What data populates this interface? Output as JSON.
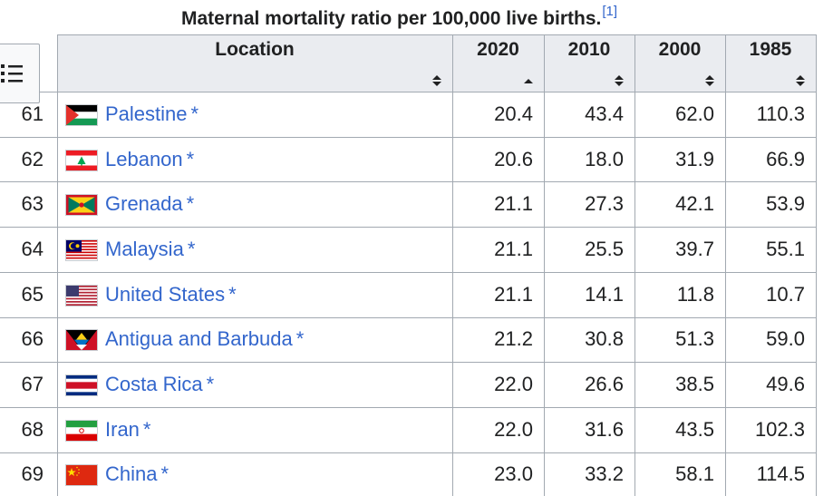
{
  "table": {
    "caption": "Maternal mortality ratio per 100,000 live births.",
    "ref": "[1]",
    "headers": {
      "location": "Location",
      "y2020": "2020",
      "y2010": "2010",
      "y2000": "2000",
      "y1985": "1985"
    },
    "sorted_column": "2020",
    "rows": [
      {
        "rank": "61",
        "location": "Palestine",
        "star": "*",
        "flag": "palestine-flag-icon",
        "v2020": "20.4",
        "v2010": "43.4",
        "v2000": "62.0",
        "v1985": "110.3"
      },
      {
        "rank": "62",
        "location": "Lebanon",
        "star": "*",
        "flag": "lebanon-flag-icon",
        "v2020": "20.6",
        "v2010": "18.0",
        "v2000": "31.9",
        "v1985": "66.9"
      },
      {
        "rank": "63",
        "location": "Grenada",
        "star": "*",
        "flag": "grenada-flag-icon",
        "v2020": "21.1",
        "v2010": "27.3",
        "v2000": "42.1",
        "v1985": "53.9"
      },
      {
        "rank": "64",
        "location": "Malaysia",
        "star": "*",
        "flag": "malaysia-flag-icon",
        "v2020": "21.1",
        "v2010": "25.5",
        "v2000": "39.7",
        "v1985": "55.1"
      },
      {
        "rank": "65",
        "location": "United States",
        "star": "*",
        "flag": "united-states-flag-icon",
        "v2020": "21.1",
        "v2010": "14.1",
        "v2000": "11.8",
        "v1985": "10.7"
      },
      {
        "rank": "66",
        "location": "Antigua and Barbuda",
        "star": "*",
        "flag": "antigua-and-barbuda-flag-icon",
        "v2020": "21.2",
        "v2010": "30.8",
        "v2000": "51.3",
        "v1985": "59.0"
      },
      {
        "rank": "67",
        "location": "Costa Rica",
        "star": "*",
        "flag": "costa-rica-flag-icon",
        "v2020": "22.0",
        "v2010": "26.6",
        "v2000": "38.5",
        "v1985": "49.6"
      },
      {
        "rank": "68",
        "location": "Iran",
        "star": "*",
        "flag": "iran-flag-icon",
        "v2020": "22.0",
        "v2010": "31.6",
        "v2000": "43.5",
        "v1985": "102.3"
      },
      {
        "rank": "69",
        "location": "China",
        "star": "*",
        "flag": "china-flag-icon",
        "v2020": "23.0",
        "v2010": "33.2",
        "v2000": "58.1",
        "v1985": "114.5"
      }
    ]
  },
  "colors": {
    "link": "#3366cc",
    "header_bg": "#eaecf0",
    "border": "#a2a9b1",
    "text": "#202122"
  }
}
